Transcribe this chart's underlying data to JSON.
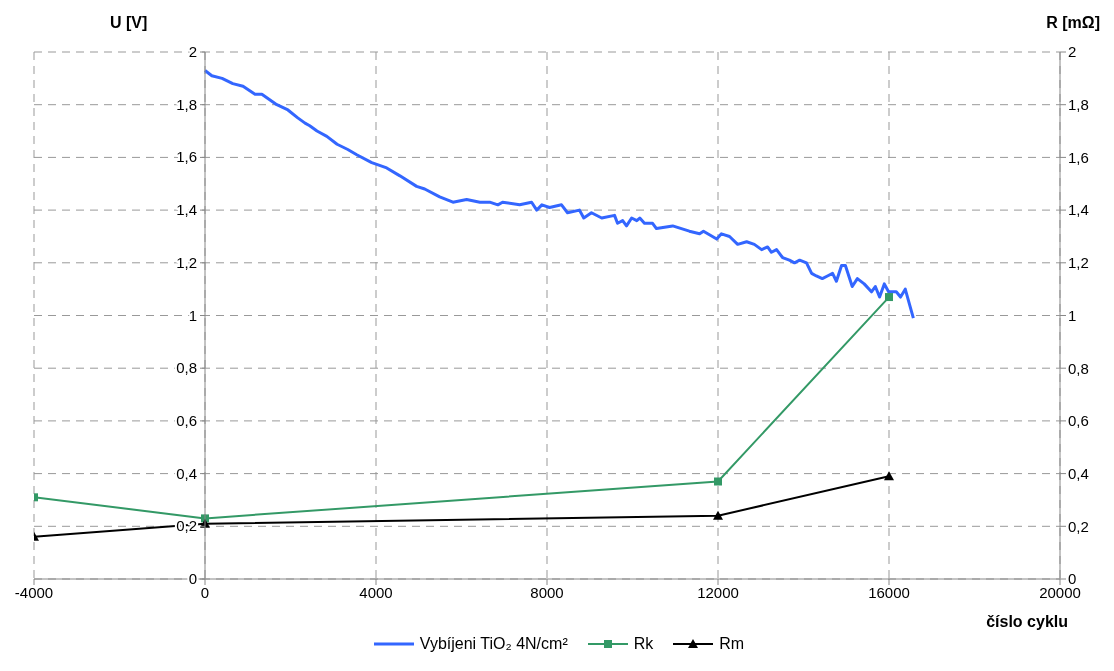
{
  "chart_data": {
    "type": "line",
    "xlabel": "číslo cyklu",
    "ylabel": "U [V]",
    "y2label": "R [mΩ]",
    "xlim": [
      -4000,
      20000
    ],
    "xticks": [
      -4000,
      0,
      4000,
      8000,
      12000,
      16000,
      20000
    ],
    "ylim": [
      0,
      2
    ],
    "yticks": [
      0,
      {
        "value": 0.2,
        "label": "0,2"
      },
      {
        "value": 0.4,
        "label": "0,4"
      },
      {
        "value": 0.6,
        "label": "0,6"
      },
      {
        "value": 0.8,
        "label": "0,8"
      },
      1,
      {
        "value": 1.2,
        "label": "1,2"
      },
      {
        "value": 1.4,
        "label": "1,4"
      },
      {
        "value": 1.6,
        "label": "1,6"
      },
      {
        "value": 1.8,
        "label": "1,8"
      },
      2
    ],
    "y2lim": [
      0,
      2
    ],
    "y2ticks": [
      0,
      {
        "value": 0.2,
        "label": "0,2"
      },
      {
        "value": 0.4,
        "label": "0,4"
      },
      {
        "value": 0.6,
        "label": "0,6"
      },
      {
        "value": 0.8,
        "label": "0,8"
      },
      1,
      {
        "value": 1.2,
        "label": "1,2"
      },
      {
        "value": 1.4,
        "label": "1,4"
      },
      {
        "value": 1.6,
        "label": "1,6"
      },
      {
        "value": 1.8,
        "label": "1,8"
      },
      2
    ],
    "grid": true,
    "legend": "bottom",
    "series": [
      {
        "name": "Vybíjeni TiO₂ 4N/cm²",
        "color": "#3366ff",
        "marker": "none",
        "x": [
          0,
          160,
          400,
          650,
          890,
          1170,
          1330,
          1680,
          1940,
          2170,
          2340,
          2450,
          2620,
          2850,
          3090,
          3340,
          3550,
          3900,
          4250,
          4560,
          4950,
          5140,
          5490,
          5800,
          6120,
          6430,
          6660,
          6850,
          6960,
          7360,
          7640,
          7760,
          7880,
          8060,
          8340,
          8480,
          8760,
          8860,
          9040,
          9280,
          9580,
          9650,
          9770,
          9860,
          9980,
          10100,
          10170,
          10280,
          10470,
          10560,
          10940,
          11330,
          11570,
          11660,
          11970,
          12080,
          12270,
          12460,
          12670,
          12850,
          13020,
          13160,
          13250,
          13370,
          13510,
          13670,
          13790,
          13910,
          14070,
          14190,
          14300,
          14440,
          14560,
          14680,
          14770,
          14890,
          14980,
          15140,
          15260,
          15420,
          15590,
          15680,
          15780,
          15890,
          15990,
          16170,
          16270,
          16380,
          16570
        ],
        "values": [
          1.93,
          1.91,
          1.9,
          1.88,
          1.87,
          1.84,
          1.84,
          1.8,
          1.78,
          1.75,
          1.73,
          1.72,
          1.7,
          1.68,
          1.65,
          1.63,
          1.61,
          1.58,
          1.56,
          1.53,
          1.49,
          1.48,
          1.45,
          1.43,
          1.44,
          1.43,
          1.43,
          1.42,
          1.43,
          1.42,
          1.43,
          1.4,
          1.42,
          1.41,
          1.42,
          1.39,
          1.4,
          1.37,
          1.39,
          1.37,
          1.38,
          1.35,
          1.36,
          1.34,
          1.37,
          1.36,
          1.37,
          1.35,
          1.35,
          1.33,
          1.34,
          1.32,
          1.31,
          1.32,
          1.29,
          1.31,
          1.3,
          1.27,
          1.28,
          1.27,
          1.25,
          1.26,
          1.24,
          1.25,
          1.22,
          1.21,
          1.2,
          1.21,
          1.2,
          1.16,
          1.15,
          1.14,
          1.15,
          1.16,
          1.13,
          1.19,
          1.19,
          1.11,
          1.14,
          1.12,
          1.09,
          1.11,
          1.07,
          1.12,
          1.09,
          1.09,
          1.07,
          1.1,
          0.99
        ]
      },
      {
        "name": "Rk",
        "color": "#339966",
        "marker": "square",
        "axis": "y2",
        "x": [
          -4000,
          0,
          12000,
          16000
        ],
        "values": [
          0.31,
          0.23,
          0.37,
          1.07
        ]
      },
      {
        "name": "Rm",
        "color": "#000000",
        "marker": "triangle",
        "axis": "y2",
        "x": [
          -4000,
          0,
          12000,
          16000
        ],
        "values": [
          0.16,
          0.21,
          0.24,
          0.39
        ]
      }
    ]
  }
}
